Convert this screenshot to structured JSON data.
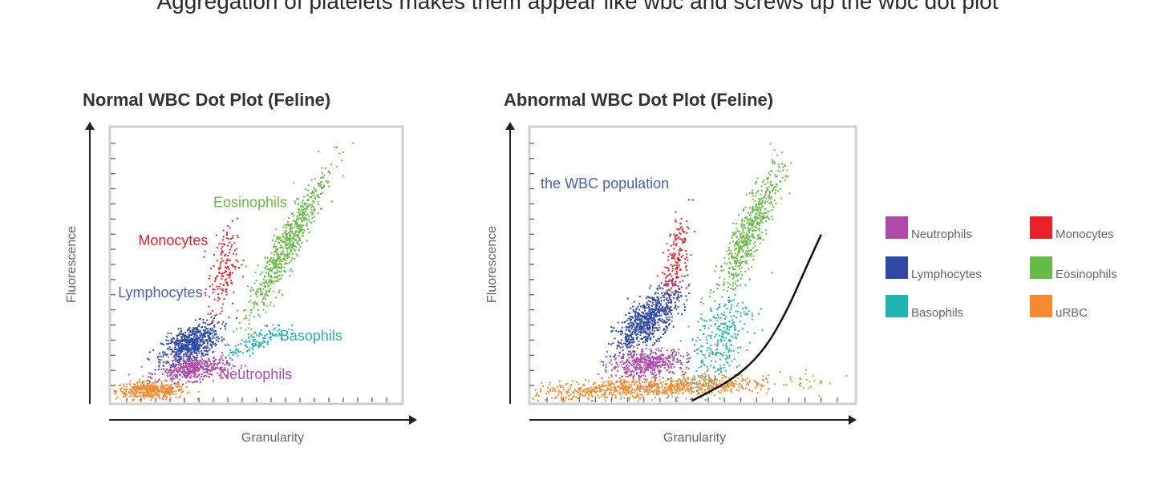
{
  "page": {
    "title": "Aggregation of platelets makes them appear like wbc and screws up the wbc dot plot"
  },
  "legend": [
    {
      "label": "Neutrophils",
      "color": "#b04aa8"
    },
    {
      "label": "Monocytes",
      "color": "#e8202a"
    },
    {
      "label": "Lymphocytes",
      "color": "#2f4aa6"
    },
    {
      "label": "Eosinophils",
      "color": "#66bb44"
    },
    {
      "label": "Basophils",
      "color": "#1fb5b5"
    },
    {
      "label": "uRBC",
      "color": "#f58a2e"
    }
  ],
  "chart_data": [
    {
      "type": "scatter",
      "title": "Normal WBC Dot Plot (Feline)",
      "xlabel": "Granularity",
      "ylabel": "Fluorescence",
      "xlim": [
        0,
        100
      ],
      "ylim": [
        0,
        100
      ],
      "grid": false,
      "annotations": [
        {
          "text": "Eosinophils",
          "color": "#66bb44",
          "x": 35,
          "y": 71
        },
        {
          "text": "Monocytes",
          "color": "#e8202a",
          "x": 9,
          "y": 57
        },
        {
          "text": "Lymphocytes",
          "color": "#4a5fc0",
          "x": 2,
          "y": 38
        },
        {
          "text": "Basophils",
          "color": "#1fb5b5",
          "x": 58,
          "y": 22
        },
        {
          "text": "Neutrophils",
          "color": "#b04aa8",
          "x": 37,
          "y": 8
        }
      ],
      "series": [
        {
          "name": "uRBC",
          "color": "#f58a2e",
          "center": [
            13,
            4
          ],
          "spread": [
            6,
            1.6
          ],
          "corr": 0,
          "count": 420
        },
        {
          "name": "Lymphocytes",
          "color": "#2f4aa6",
          "center": [
            27,
            21
          ],
          "spread": [
            5,
            4
          ],
          "corr": 0.55,
          "count": 650
        },
        {
          "name": "Neutrophils",
          "color": "#b04aa8",
          "center": [
            28,
            12
          ],
          "spread": [
            6,
            2.2
          ],
          "corr": 0.3,
          "count": 420
        },
        {
          "name": "Monocytes",
          "color": "#e8202a",
          "center": [
            38,
            47
          ],
          "spread": [
            2.5,
            8
          ],
          "corr": 0.3,
          "count": 160
        },
        {
          "name": "Eosinophils",
          "color": "#66bb44",
          "center": [
            60,
            57
          ],
          "spread": [
            7,
            14
          ],
          "corr": 0.93,
          "count": 650
        },
        {
          "name": "Basophils",
          "color": "#1fb5b5",
          "center": [
            50,
            22
          ],
          "spread": [
            5,
            3
          ],
          "corr": 0.8,
          "count": 130
        }
      ]
    },
    {
      "type": "scatter",
      "title": "Abnormal WBC Dot Plot (Feline)",
      "xlabel": "Granularity",
      "ylabel": "Fluorescence",
      "xlim": [
        0,
        100
      ],
      "ylim": [
        0,
        100
      ],
      "grid": false,
      "annotations": [
        {
          "text": "the WBC population",
          "color": "#4a5fc0",
          "x": 3,
          "y": 78
        }
      ],
      "series": [
        {
          "name": "uRBC",
          "color": "#f58a2e",
          "center": [
            38,
            5
          ],
          "spread": [
            20,
            2.2
          ],
          "corr": 0.5,
          "count": 900
        },
        {
          "name": "Lymphocytes",
          "color": "#2f4aa6",
          "center": [
            36,
            30
          ],
          "spread": [
            5,
            6
          ],
          "corr": 0.7,
          "count": 700
        },
        {
          "name": "Neutrophils",
          "color": "#b04aa8",
          "center": [
            36,
            14
          ],
          "spread": [
            6,
            2.5
          ],
          "corr": 0.2,
          "count": 450
        },
        {
          "name": "Monocytes",
          "color": "#e8202a",
          "center": [
            45,
            52
          ],
          "spread": [
            2,
            8
          ],
          "corr": 0.5,
          "count": 170
        },
        {
          "name": "Eosinophils",
          "color": "#66bb44",
          "center": [
            68,
            63
          ],
          "spread": [
            5,
            12
          ],
          "corr": 0.88,
          "count": 550
        },
        {
          "name": "Basophils",
          "color": "#1fb5b5",
          "center": [
            58,
            23
          ],
          "spread": [
            5,
            9
          ],
          "corr": 0.5,
          "count": 300
        }
      ],
      "curve": {
        "color": "#111111",
        "points": [
          [
            50,
            0
          ],
          [
            63,
            8
          ],
          [
            72,
            18
          ],
          [
            79,
            32
          ],
          [
            85,
            48
          ],
          [
            90,
            61
          ]
        ]
      }
    }
  ]
}
